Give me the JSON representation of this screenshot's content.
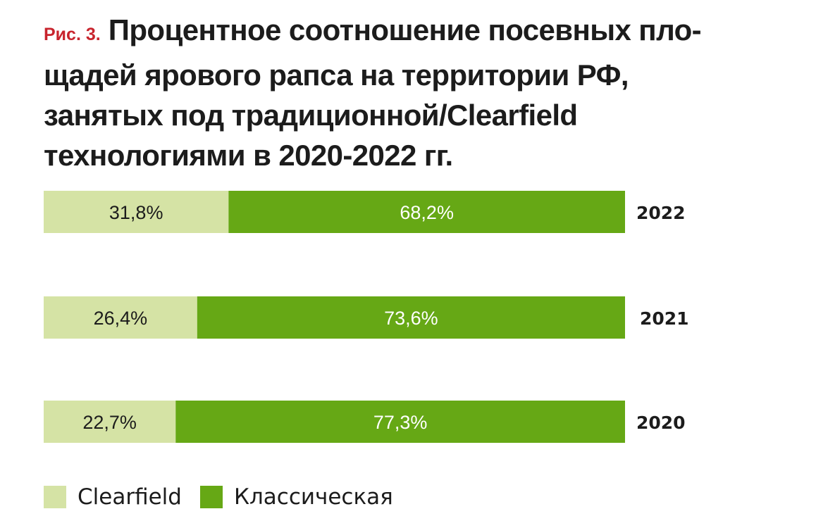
{
  "figure_label": "Рис. 3.",
  "title": "Процентное соотношение посевных пло-щадей ярового рапса на территории РФ, занятых под традиционной/Clearfield технологиями в 2020-2022 гг.",
  "title_lines": [
    "Процентное соотношение посевных пло-",
    "щадей ярового рапса на территории РФ,",
    "занятых под традиционной/Clearfield",
    "технологиями в 2020-2022 гг."
  ],
  "colors": {
    "clearfield": "#d5e3a5",
    "classic": "#66a815",
    "figure_label": "#c8242d",
    "text_dark": "#1c1c1c",
    "text_light": "#ffffff"
  },
  "chart_data": {
    "type": "bar",
    "orientation": "horizontal",
    "stacked": true,
    "normalized": true,
    "categories": [
      "2022",
      "2021",
      "2020"
    ],
    "series": [
      {
        "name": "Clearfield",
        "values": [
          31.8,
          26.4,
          22.7
        ],
        "labels": [
          "31,8%",
          "26,4%",
          "22,7%"
        ]
      },
      {
        "name": "Классическая",
        "values": [
          68.2,
          73.6,
          77.3
        ],
        "labels": [
          "68,2%",
          "73,6%",
          "77,3%"
        ]
      }
    ],
    "xlim": [
      0,
      100
    ],
    "grid": false,
    "legend_position": "bottom-left"
  },
  "legend": [
    {
      "label": "Clearfield",
      "color": "#d5e3a5"
    },
    {
      "label": "Классическая",
      "color": "#66a815"
    }
  ]
}
